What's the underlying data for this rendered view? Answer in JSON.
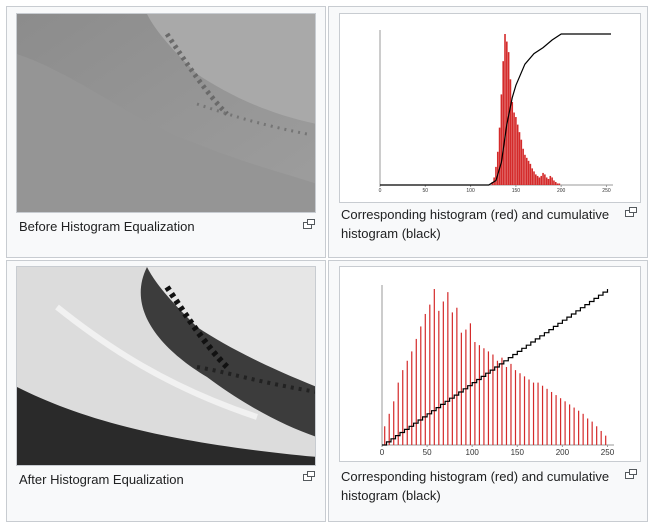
{
  "gallery": {
    "items": [
      {
        "caption": "Before Histogram Equalization"
      },
      {
        "caption": "Corresponding histogram (red) and cumulative histogram (black)"
      },
      {
        "caption": "After Histogram Equalization"
      },
      {
        "caption": "Corresponding histogram (red) and cumulative histogram (black)"
      }
    ],
    "magnify_icon": "magnify-clip-icon"
  },
  "colors": {
    "histogram": "#d42a2a",
    "cumulative": "#000000",
    "border": "#c8ccd1",
    "cell_bg": "#f8f9fa"
  },
  "chart_data": [
    {
      "type": "bar",
      "title": "",
      "xlabel": "",
      "ylabel": "",
      "xlim": [
        0,
        255
      ],
      "x_ticks": [
        "0",
        "50",
        "100",
        "150",
        "200",
        "250"
      ],
      "series": [
        {
          "values_x": [
            124,
            126,
            128,
            130,
            132,
            134,
            136,
            138,
            140,
            142,
            144,
            146,
            148,
            150,
            152,
            154,
            156,
            158,
            160,
            162,
            164,
            166,
            168,
            170,
            172,
            174,
            176,
            178,
            180,
            182,
            184,
            186,
            188,
            190,
            192,
            194,
            196,
            198
          ],
          "values_y": [
            2,
            5,
            12,
            22,
            38,
            60,
            82,
            100,
            95,
            88,
            70,
            55,
            48,
            45,
            40,
            35,
            30,
            24,
            20,
            18,
            16,
            14,
            11,
            9,
            7,
            6,
            5,
            6,
            8,
            7,
            5,
            4,
            6,
            5,
            3,
            2,
            1,
            1
          ]
        },
        {
          "cumulative": [
            [
              0,
              0
            ],
            [
              120,
              0
            ],
            [
              128,
              3
            ],
            [
              134,
              15
            ],
            [
              140,
              40
            ],
            [
              146,
              58
            ],
            [
              150,
              66
            ],
            [
              160,
              80
            ],
            [
              170,
              87
            ],
            [
              180,
              91
            ],
            [
              190,
              96
            ],
            [
              200,
              100
            ],
            [
              255,
              100
            ]
          ]
        }
      ]
    },
    {
      "type": "bar",
      "title": "",
      "xlabel": "",
      "ylabel": "",
      "xlim": [
        0,
        255
      ],
      "x_ticks": [
        "0",
        "50",
        "100",
        "150",
        "200",
        "250"
      ],
      "series": [
        {
          "values_x": [
            3,
            8,
            13,
            18,
            23,
            28,
            33,
            38,
            43,
            48,
            53,
            58,
            63,
            68,
            73,
            78,
            83,
            88,
            93,
            98,
            103,
            108,
            113,
            118,
            123,
            128,
            133,
            138,
            143,
            148,
            153,
            158,
            163,
            168,
            173,
            178,
            183,
            188,
            193,
            198,
            203,
            208,
            213,
            218,
            223,
            228,
            233,
            238,
            243,
            248
          ],
          "values_y": [
            12,
            20,
            28,
            40,
            48,
            54,
            60,
            68,
            76,
            84,
            90,
            100,
            86,
            92,
            98,
            85,
            88,
            72,
            74,
            78,
            66,
            64,
            62,
            60,
            58,
            54,
            56,
            50,
            52,
            48,
            46,
            44,
            42,
            40,
            40,
            38,
            36,
            34,
            32,
            30,
            28,
            26,
            24,
            22,
            20,
            17,
            15,
            12,
            9,
            6
          ]
        },
        {
          "cumulative_steps": 50,
          "cumulative_range": [
            0,
            100
          ]
        }
      ]
    }
  ]
}
